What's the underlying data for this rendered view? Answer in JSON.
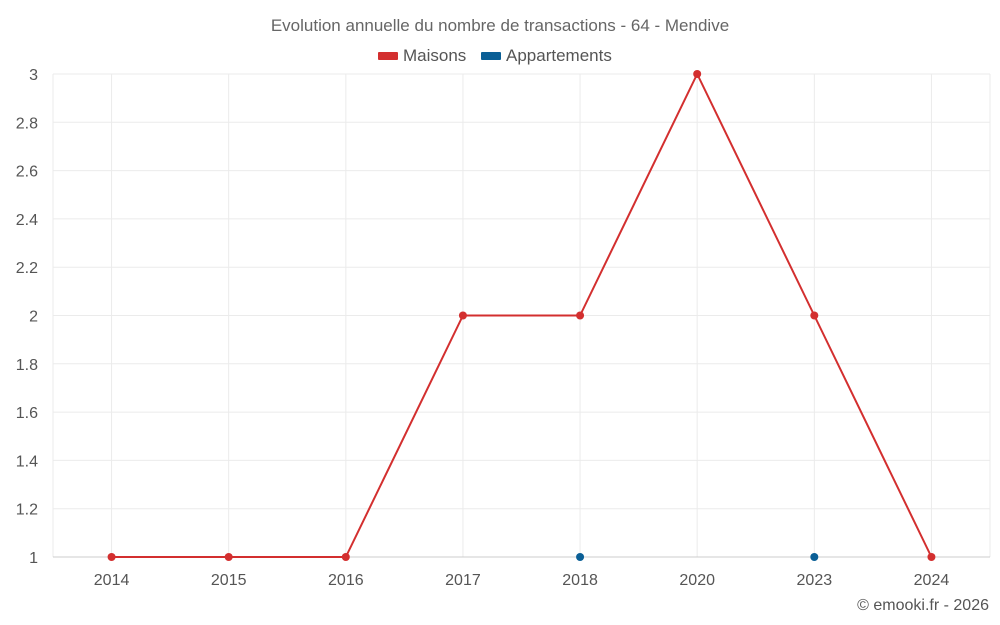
{
  "chart_data": {
    "type": "line",
    "title": "Evolution annuelle du nombre de transactions - 64 - Mendive",
    "categories": [
      "2014",
      "2015",
      "2016",
      "2017",
      "2018",
      "2020",
      "2023",
      "2024"
    ],
    "series": [
      {
        "name": "Maisons",
        "color": "#d32f2f",
        "values": [
          1,
          1,
          1,
          2,
          2,
          3,
          2,
          1
        ]
      },
      {
        "name": "Appartements",
        "color": "#0a5f96",
        "values": [
          null,
          null,
          null,
          null,
          1,
          null,
          1,
          null
        ]
      }
    ],
    "yticks": [
      "1",
      "1.2",
      "1.4",
      "1.6",
      "1.8",
      "2",
      "2.2",
      "2.4",
      "2.6",
      "2.8",
      "3"
    ],
    "ylim": [
      1,
      3
    ],
    "grid": true,
    "legend_position": "top-center",
    "credit": "© emooki.fr - 2026"
  }
}
